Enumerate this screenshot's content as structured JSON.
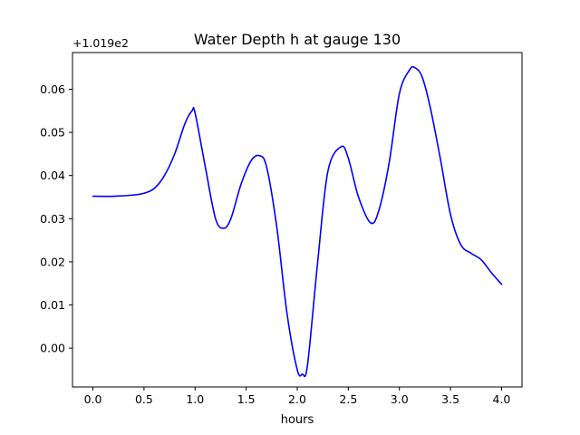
{
  "chart_data": {
    "type": "line",
    "title": "Water Depth h at gauge 130",
    "xlabel": "hours",
    "ylabel": "",
    "y_offset_label": "+1.019e2",
    "xlim": [
      -0.2,
      4.2
    ],
    "ylim": [
      -0.009,
      0.0685
    ],
    "xticks": [
      0.0,
      0.5,
      1.0,
      1.5,
      2.0,
      2.5,
      3.0,
      3.5,
      4.0
    ],
    "xtick_labels": [
      "0.0",
      "0.5",
      "1.0",
      "1.5",
      "2.0",
      "2.5",
      "3.0",
      "3.5",
      "4.0"
    ],
    "yticks": [
      0.0,
      0.01,
      0.02,
      0.03,
      0.04,
      0.05,
      0.06
    ],
    "ytick_labels": [
      "0.00",
      "0.01",
      "0.02",
      "0.03",
      "0.04",
      "0.05",
      "0.06"
    ],
    "grid": false,
    "series": [
      {
        "color": "#0000ff",
        "x": [
          0.0,
          0.2,
          0.4,
          0.5,
          0.6,
          0.7,
          0.8,
          0.9,
          0.97,
          1.0,
          1.1,
          1.2,
          1.28,
          1.35,
          1.45,
          1.55,
          1.63,
          1.7,
          1.8,
          1.9,
          2.0,
          2.05,
          2.1,
          2.2,
          2.3,
          2.43,
          2.5,
          2.6,
          2.72,
          2.8,
          2.9,
          3.0,
          3.1,
          3.15,
          3.22,
          3.3,
          3.4,
          3.5,
          3.6,
          3.7,
          3.8,
          3.9,
          4.0
        ],
        "y": [
          0.0352,
          0.0352,
          0.0355,
          0.0359,
          0.037,
          0.04,
          0.045,
          0.052,
          0.055,
          0.0545,
          0.042,
          0.03,
          0.0278,
          0.03,
          0.038,
          0.0435,
          0.0446,
          0.042,
          0.028,
          0.008,
          -0.005,
          -0.006,
          -0.004,
          0.02,
          0.041,
          0.0467,
          0.044,
          0.035,
          0.029,
          0.032,
          0.043,
          0.059,
          0.0645,
          0.065,
          0.063,
          0.056,
          0.044,
          0.031,
          0.024,
          0.022,
          0.0205,
          0.0175,
          0.0148
        ]
      }
    ]
  }
}
